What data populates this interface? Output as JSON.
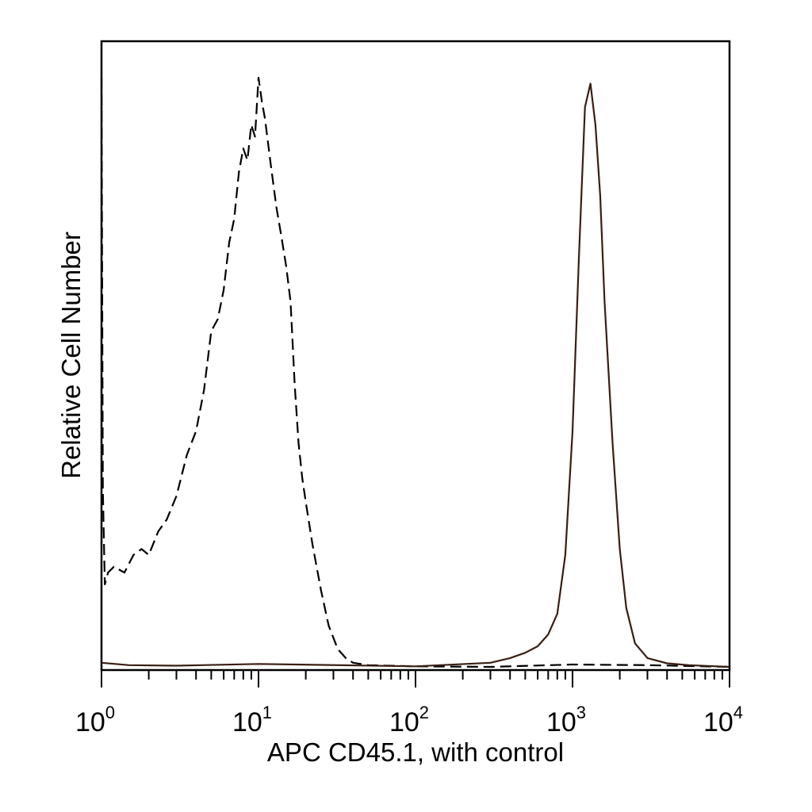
{
  "chart_data": {
    "type": "line",
    "title": "",
    "xlabel": "APC CD45.1, with control",
    "ylabel": "Relative Cell Number",
    "x_scale": "log",
    "xlim": [
      1,
      10000
    ],
    "ylim": [
      0,
      100
    ],
    "grid": false,
    "legend": "none",
    "x_tick_labels": [
      {
        "base": "10",
        "exp": "0",
        "value": 1
      },
      {
        "base": "10",
        "exp": "1",
        "value": 10
      },
      {
        "base": "10",
        "exp": "2",
        "value": 100
      },
      {
        "base": "10",
        "exp": "3",
        "value": 1000
      },
      {
        "base": "10",
        "exp": "4",
        "value": 10000
      }
    ],
    "series": [
      {
        "style": "dashed",
        "color": "#000000",
        "x": [
          1.0,
          1.02,
          1.05,
          1.1,
          1.2,
          1.4,
          1.6,
          1.8,
          2.0,
          2.3,
          2.6,
          3.0,
          3.5,
          4.0,
          4.5,
          5.0,
          5.5,
          6.0,
          6.5,
          7.0,
          7.5,
          8.0,
          8.5,
          9.0,
          9.5,
          10.0,
          10.5,
          11.0,
          12.0,
          13.0,
          14.0,
          15.0,
          16.0,
          17.0,
          18.0,
          19.0,
          20.0,
          22.0,
          25.0,
          28.0,
          32.0,
          36.0,
          40.0,
          50.0,
          100.0,
          300.0,
          1000.0,
          3000.0,
          10000.0
        ],
        "y": [
          100,
          30,
          14,
          16,
          17,
          16,
          19,
          20,
          19,
          23,
          25,
          29,
          36,
          40,
          47,
          57,
          59,
          64,
          72,
          76,
          84,
          88,
          86,
          92,
          90,
          100,
          96,
          93,
          85,
          78,
          73,
          68,
          62,
          48,
          38,
          32,
          28,
          21,
          13,
          7,
          3,
          1.5,
          0.7,
          0.3,
          0.1,
          0,
          0.4,
          0.3,
          0
        ],
        "comment_free": true
      },
      {
        "style": "solid",
        "color": "#3a1e12",
        "x": [
          1.0,
          1.5,
          3.0,
          10.0,
          100.0,
          300.0,
          400.0,
          500.0,
          600.0,
          700.0,
          800.0,
          900.0,
          1000.0,
          1100.0,
          1200.0,
          1300.0,
          1400.0,
          1500.0,
          1600.0,
          1800.0,
          2000.0,
          2200.0,
          2500.0,
          3000.0,
          4000.0,
          5500.0,
          10000.0
        ],
        "y": [
          0.7,
          0.3,
          0.2,
          0.5,
          0.1,
          0.7,
          1.5,
          2.4,
          3.5,
          5.5,
          9,
          19,
          40,
          70,
          95,
          99,
          92,
          80,
          62,
          38,
          20,
          10,
          4,
          1.5,
          0.6,
          0.3,
          0
        ]
      }
    ]
  }
}
